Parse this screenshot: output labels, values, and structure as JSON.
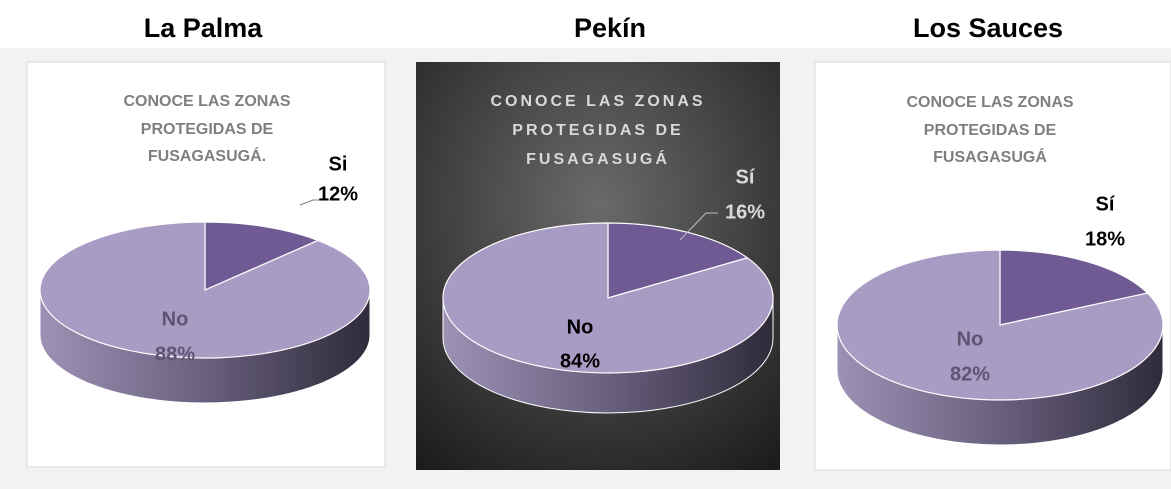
{
  "chart_data": [
    {
      "type": "pie",
      "heading": "La Palma",
      "title": [
        "CONOCE LAS ZONAS",
        "PROTEGIDAS DE",
        "FUSAGASUGÁ."
      ],
      "categories": [
        "Si",
        "No"
      ],
      "values": [
        12,
        88
      ],
      "value_labels": [
        "12%",
        "88%"
      ],
      "colors": [
        "#6f5a94",
        "#a99cc4"
      ]
    },
    {
      "type": "pie",
      "heading": "Pekín",
      "title": [
        "CONOCE LAS ZONAS",
        "PROTEGIDAS DE",
        "FUSAGASUGÁ"
      ],
      "categories": [
        "Sí",
        "No"
      ],
      "values": [
        16,
        84
      ],
      "value_labels": [
        "16%",
        "84%"
      ],
      "colors": [
        "#6f5a94",
        "#a99cc4"
      ]
    },
    {
      "type": "pie",
      "heading": "Los Sauces",
      "title": [
        "CONOCE LAS ZONAS",
        "PROTEGIDAS DE",
        "FUSAGASUGÁ"
      ],
      "categories": [
        "Sí",
        "No"
      ],
      "values": [
        18,
        82
      ],
      "value_labels": [
        "18%",
        "82%"
      ],
      "colors": [
        "#6f5a94",
        "#a99cc4"
      ]
    }
  ]
}
